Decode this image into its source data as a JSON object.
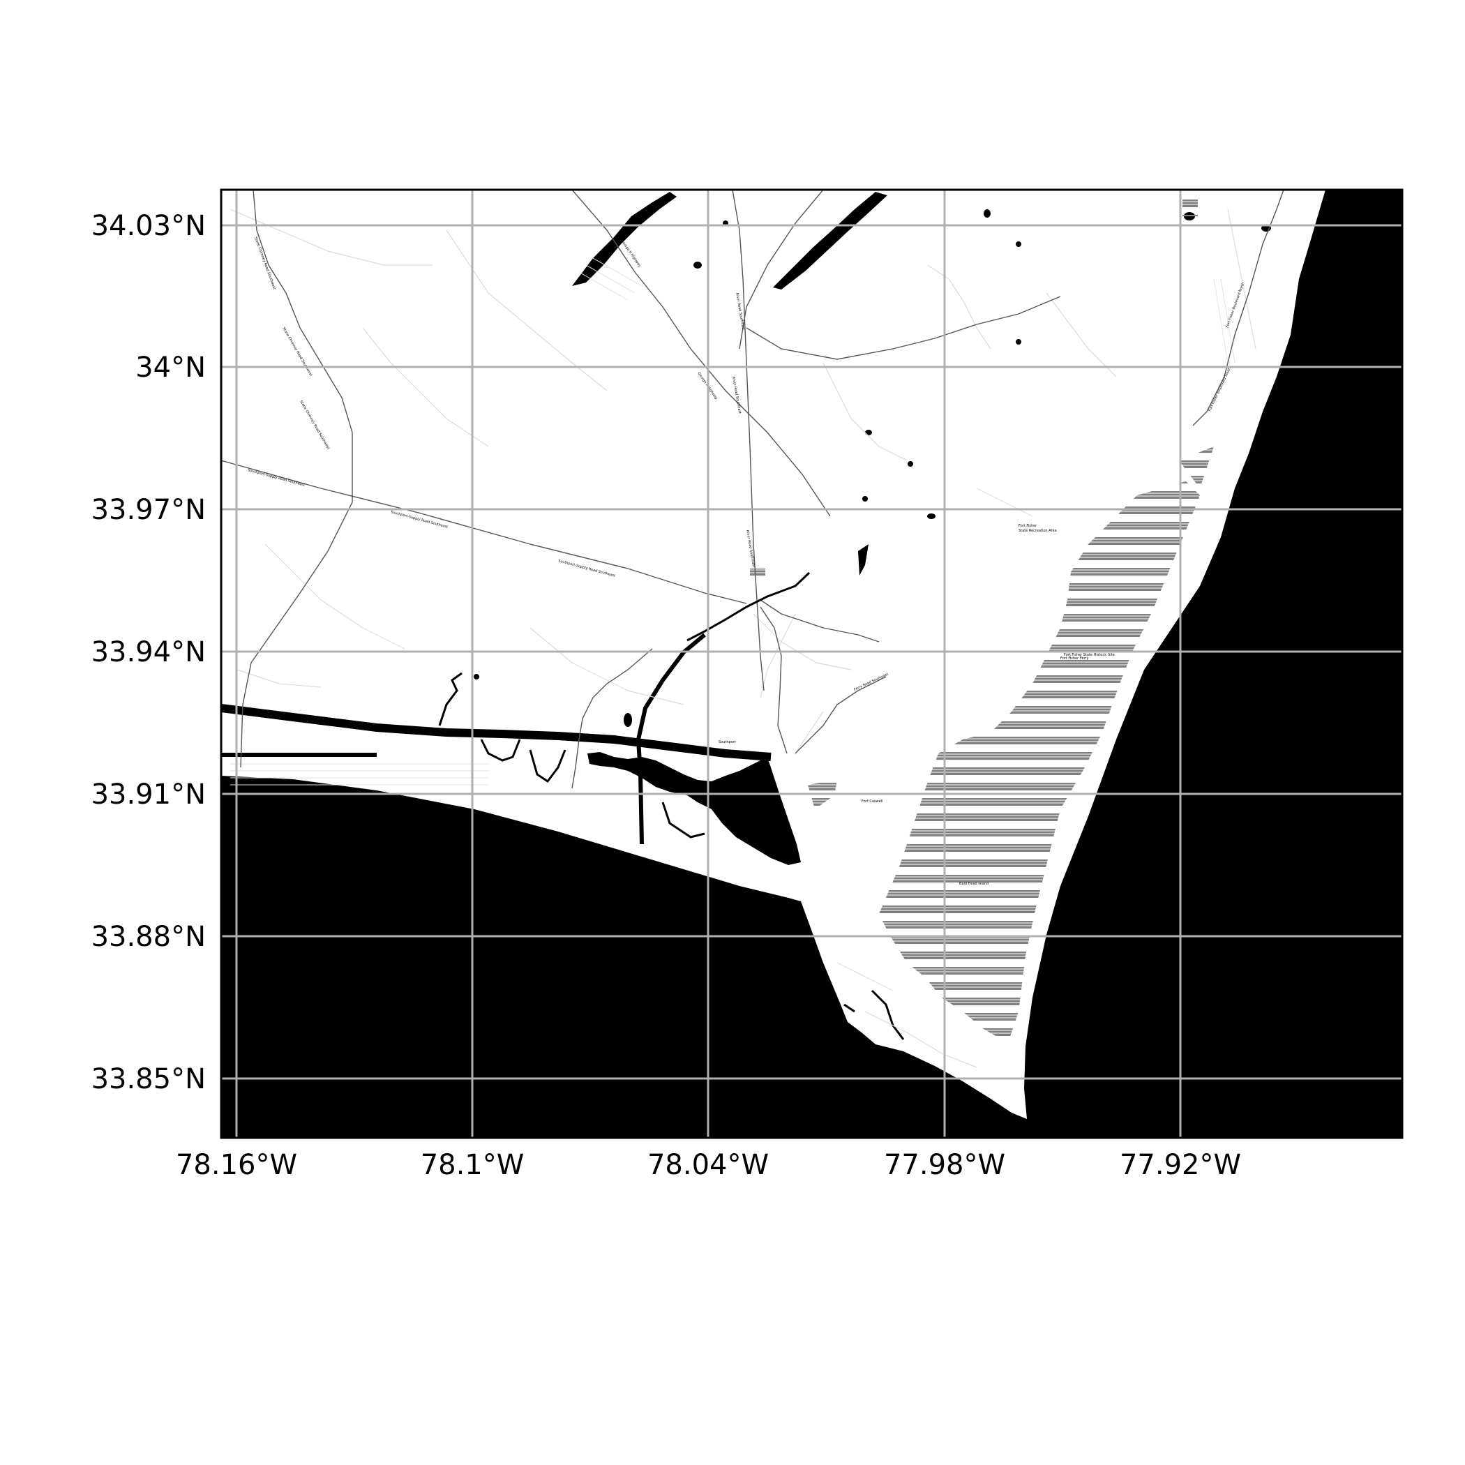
{
  "map": {
    "x_axis": {
      "unit": "degrees west",
      "ticks": [
        {
          "value": -78.16,
          "label": "78.16°W"
        },
        {
          "value": -78.1,
          "label": "78.1°W"
        },
        {
          "value": -78.04,
          "label": "78.04°W"
        },
        {
          "value": -77.98,
          "label": "77.98°W"
        },
        {
          "value": -77.92,
          "label": "77.92°W"
        }
      ],
      "range": [
        -78.164,
        -77.864
      ]
    },
    "y_axis": {
      "unit": "degrees north",
      "ticks": [
        {
          "value": 34.03,
          "label": "34.03°N"
        },
        {
          "value": 34.0,
          "label": "34°N"
        },
        {
          "value": 33.97,
          "label": "33.97°N"
        },
        {
          "value": 33.94,
          "label": "33.94°N"
        },
        {
          "value": 33.91,
          "label": "33.91°N"
        },
        {
          "value": 33.88,
          "label": "33.88°N"
        },
        {
          "value": 33.85,
          "label": "33.85°N"
        }
      ],
      "range": [
        33.8378,
        34.0378
      ]
    },
    "grid": true,
    "colors": {
      "water": "#000000",
      "land": "#ffffff",
      "grid": "#b0b0b0",
      "roads": "#555555",
      "minor_roads": "#dddddd",
      "hatch": "#808080",
      "frame": "#000000"
    }
  }
}
